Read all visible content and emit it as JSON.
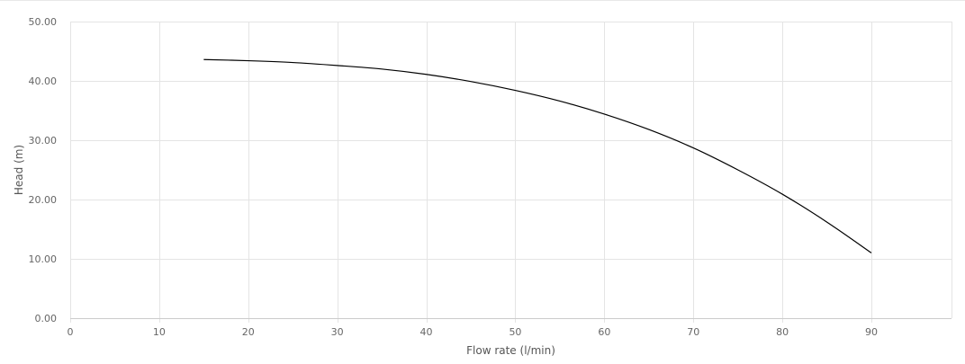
{
  "chart_data": {
    "type": "line",
    "xlabel": "Flow rate (l/min)",
    "ylabel": "Head (m)",
    "xlim": [
      0,
      99
    ],
    "ylim": [
      0,
      50
    ],
    "x_ticks": [
      "0",
      "10",
      "20",
      "30",
      "40",
      "50",
      "60",
      "70",
      "80",
      "90"
    ],
    "y_ticks": [
      "0.00",
      "10.00",
      "20.00",
      "30.00",
      "40.00",
      "50.00"
    ],
    "grid": true,
    "legend": "none",
    "series": [
      {
        "color": "#000000",
        "x": [
          15,
          20,
          25,
          30,
          35,
          40,
          45,
          50,
          55,
          60,
          65,
          70,
          75,
          80,
          85,
          90
        ],
        "y": [
          43.6,
          43.4,
          43.1,
          42.6,
          42.0,
          41.1,
          39.9,
          38.4,
          36.6,
          34.4,
          31.8,
          28.7,
          25.0,
          20.9,
          16.2,
          11.0
        ]
      }
    ]
  }
}
